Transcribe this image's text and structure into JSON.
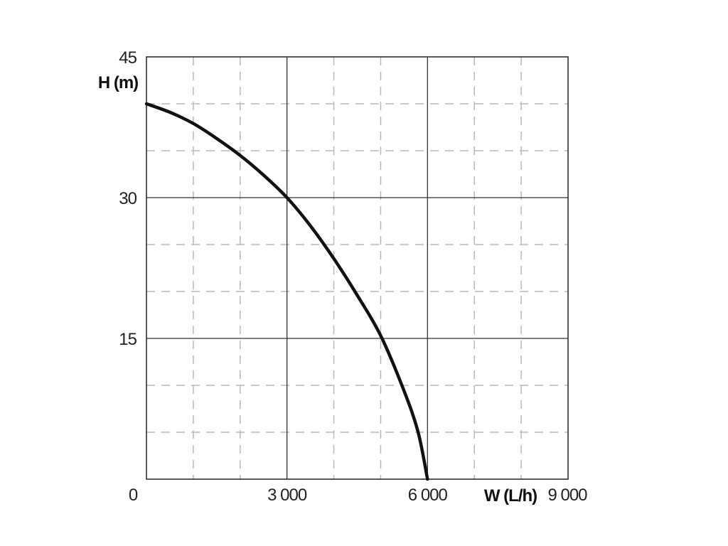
{
  "chart_data": {
    "type": "line",
    "xlabel": "W (L/h)",
    "ylabel": "H (m)",
    "xlim": [
      0,
      9000
    ],
    "ylim": [
      0,
      45
    ],
    "x_major_ticks": [
      3000,
      6000
    ],
    "x_tick_labels": [
      "0",
      "3 000",
      "6 000",
      "9 000"
    ],
    "x_tick_values": [
      0,
      3000,
      6000,
      9000
    ],
    "y_tick_labels": [
      "15",
      "30",
      "45"
    ],
    "y_tick_values": [
      15,
      30,
      45
    ],
    "x_minor_step": 1000,
    "y_minor_step": 5,
    "grid": true,
    "series": [
      {
        "x": [
          0,
          500,
          1000,
          1500,
          2000,
          2500,
          3000,
          3500,
          4000,
          4500,
          5000,
          5500,
          5800,
          6000
        ],
        "y": [
          40,
          39.1,
          37.9,
          36.3,
          34.5,
          32.4,
          30,
          27.0,
          23.5,
          19.6,
          15.3,
          9.4,
          5.0,
          0
        ]
      }
    ]
  }
}
